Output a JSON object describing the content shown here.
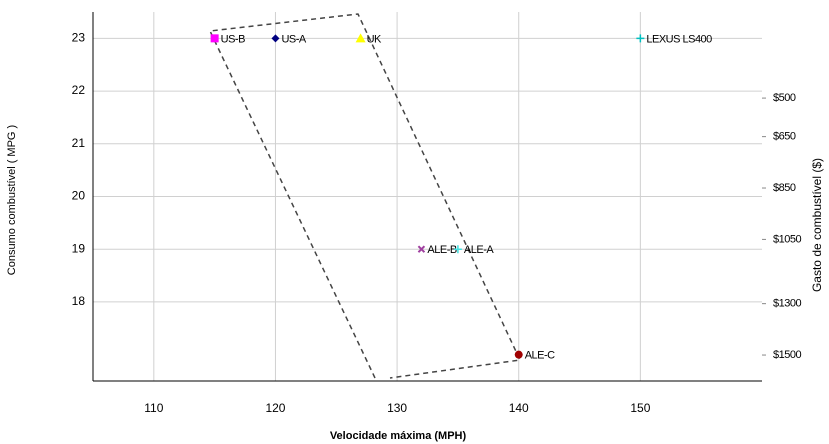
{
  "chart_data": {
    "type": "scatter",
    "x_label": "Velocidade máxima (MPH)",
    "y_label": "Consumo combustível ( MPG )",
    "y2_label": "Gasto de combustível ($)",
    "xlim": [
      105,
      160
    ],
    "xticks": [
      110,
      120,
      130,
      140,
      150
    ],
    "ylim": [
      16.5,
      23.5
    ],
    "yticks": [
      18,
      19,
      20,
      21,
      22,
      23
    ],
    "y2lim": [
      1601,
      165
    ],
    "y2ticks": [
      {
        "value": 500,
        "label": "$500"
      },
      {
        "value": 650,
        "label": "$650"
      },
      {
        "value": 850,
        "label": "$850"
      },
      {
        "value": 1050,
        "label": "$1050"
      },
      {
        "value": 1300,
        "label": "$1300"
      },
      {
        "value": 1500,
        "label": "$1500"
      }
    ],
    "grid": true,
    "series": [
      {
        "name": "US-B",
        "color": "#ff00ff",
        "marker": "square",
        "x": [
          115
        ],
        "values": [
          23
        ]
      },
      {
        "name": "US-A",
        "color": "#000080",
        "marker": "diamond",
        "x": [
          120
        ],
        "values": [
          23
        ]
      },
      {
        "name": "UK",
        "color": "#ffff00",
        "marker": "triangle",
        "x": [
          127
        ],
        "values": [
          23
        ]
      },
      {
        "name": "LEXUS LS400",
        "color": "#00c0c0",
        "marker": "plus",
        "x": [
          150
        ],
        "values": [
          23
        ]
      },
      {
        "name": "ALE-B",
        "color": "#a040a0",
        "marker": "cross",
        "x": [
          132
        ],
        "values": [
          19
        ]
      },
      {
        "name": "ALE-A",
        "color": "#40e0e0",
        "marker": "plus",
        "x": [
          135
        ],
        "values": [
          19
        ]
      },
      {
        "name": "ALE-C",
        "color": "#a00000",
        "marker": "circle",
        "x": [
          140
        ],
        "values": [
          17
        ]
      }
    ]
  }
}
